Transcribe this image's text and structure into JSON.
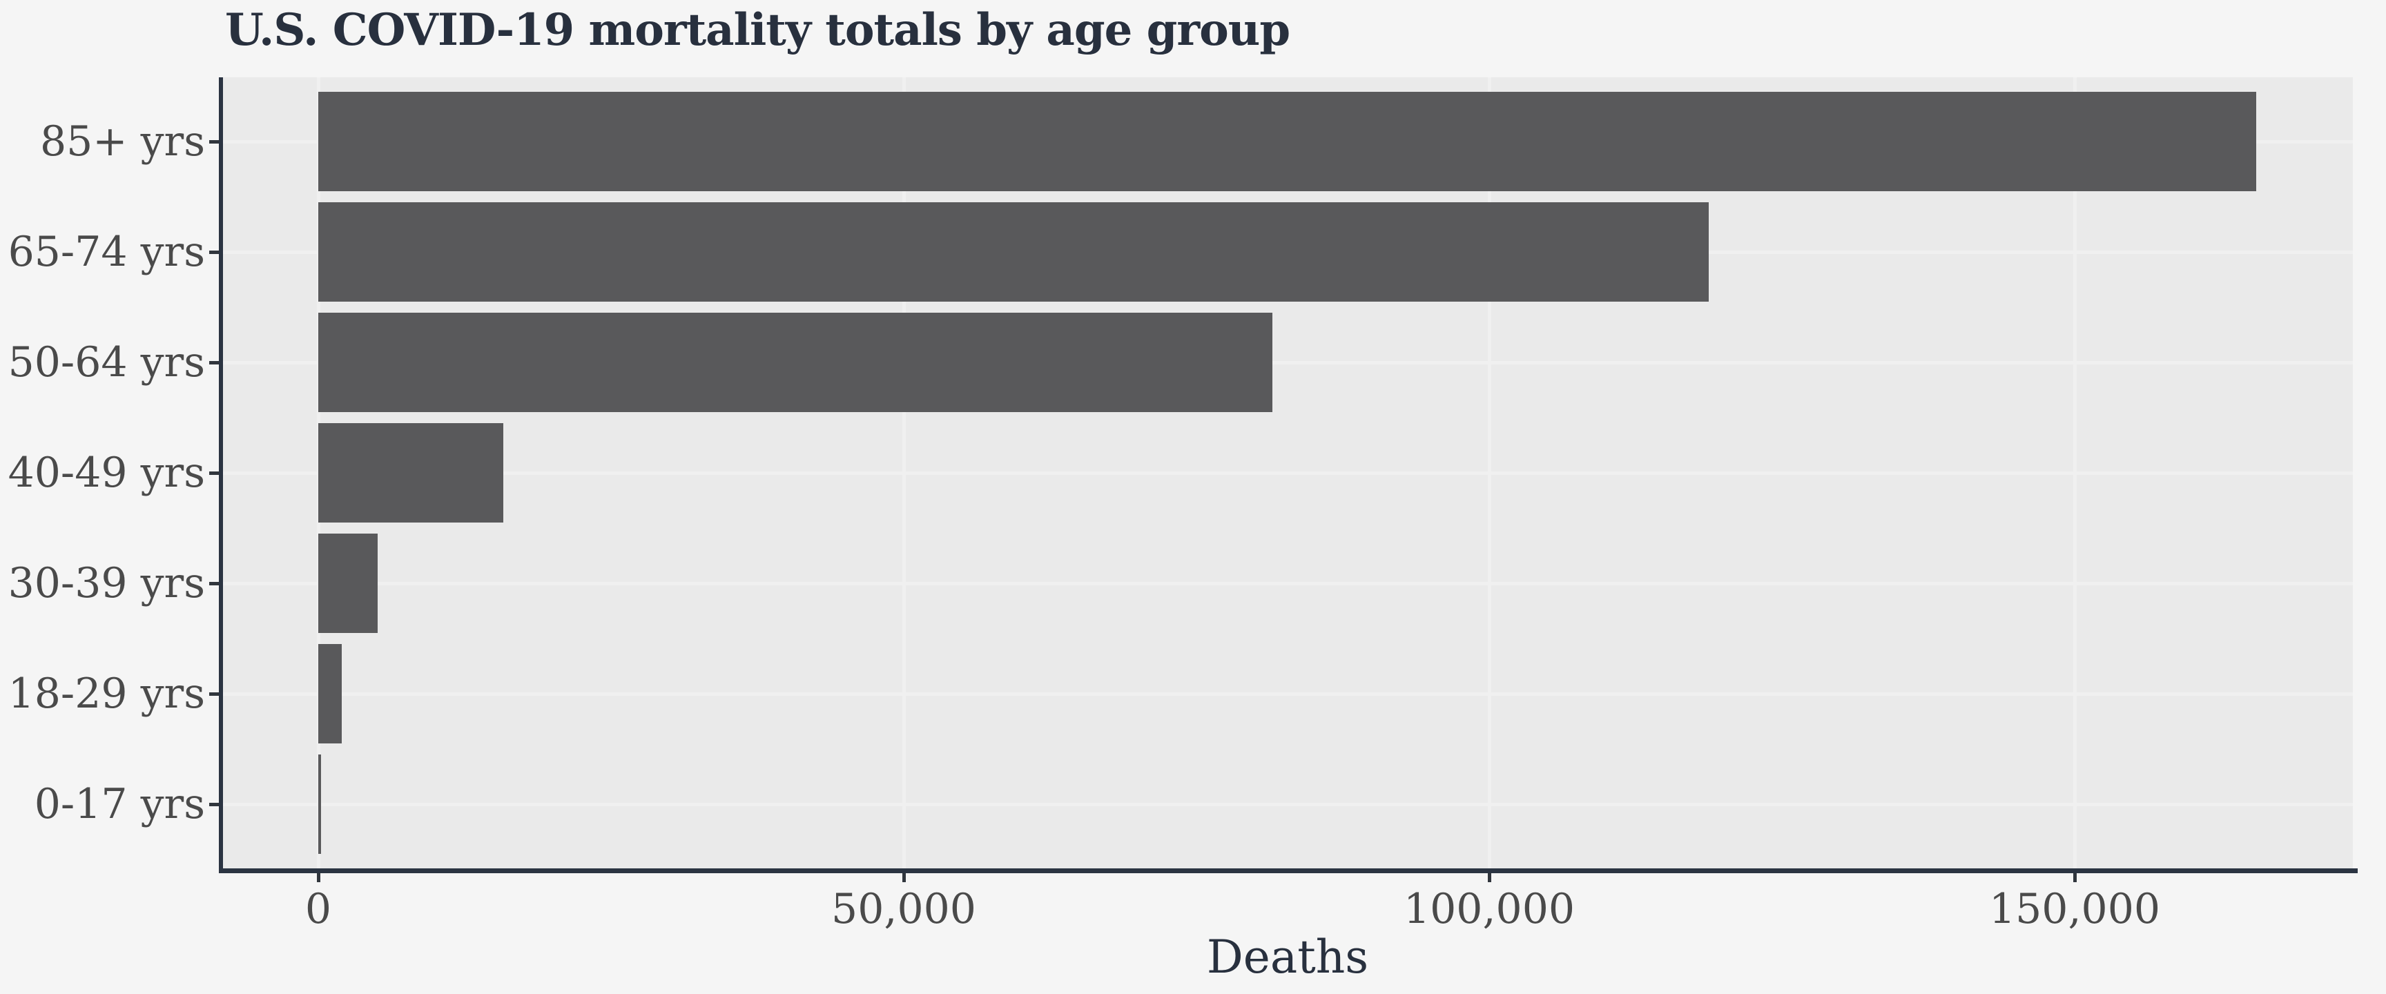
{
  "page": {
    "background": "#f5f5f5"
  },
  "chart_data": {
    "type": "bar",
    "orientation": "horizontal",
    "title": "U.S. COVID-19 mortality totals by age group",
    "xlabel": "Deaths",
    "ylabel": "",
    "categories": [
      "85+ yrs",
      "65-74 yrs",
      "50-64 yrs",
      "40-49 yrs",
      "30-39 yrs",
      "18-29 yrs",
      "0-17 yrs"
    ],
    "values": [
      165500,
      118750,
      81500,
      15800,
      5100,
      2000,
      265
    ],
    "x_ticks": [
      0,
      50000,
      100000,
      150000
    ],
    "x_tick_labels": [
      "0",
      "50,000",
      "100,000",
      "150,000"
    ],
    "xlim": [
      0,
      173800
    ],
    "grid": true,
    "legend": false,
    "bar_color": "#59595b",
    "panel_background": "#eaeaea",
    "page_background": "#f5f5f5",
    "axis_line_color": "#2b3442",
    "tick_mark_color": "#31363d",
    "title_color": "#28303e",
    "axis_title_color": "#28303e",
    "tick_label_color": "#4a4a4a",
    "gridline_color": "#f0f0f0"
  }
}
